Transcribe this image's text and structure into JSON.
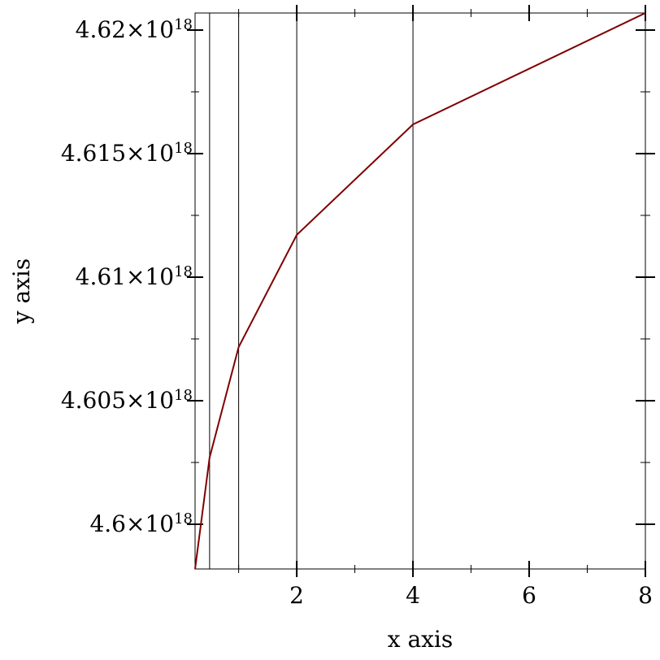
{
  "chart_data": {
    "type": "line",
    "title": "",
    "xlabel": "x axis",
    "ylabel": "y axis",
    "xlim": [
      0.25,
      8
    ],
    "ylim": [
      4.59819e+18,
      4.62069e+18
    ],
    "x_ticks": [
      {
        "value": 2,
        "label": "2"
      },
      {
        "value": 4,
        "label": "4"
      },
      {
        "value": 6,
        "label": "6"
      },
      {
        "value": 8,
        "label": "8"
      }
    ],
    "x_minor_ticks": [
      1,
      3,
      5,
      7
    ],
    "y_ticks": [
      {
        "value": 4.6e+18,
        "mant": "4.6×10",
        "exp": "18"
      },
      {
        "value": 4.605e+18,
        "mant": "4.605×10",
        "exp": "18"
      },
      {
        "value": 4.61e+18,
        "mant": "4.61×10",
        "exp": "18"
      },
      {
        "value": 4.615e+18,
        "mant": "4.615×10",
        "exp": "18"
      },
      {
        "value": 4.62e+18,
        "mant": "4.62×10",
        "exp": "18"
      }
    ],
    "y_minor_ticks": [
      4.6025e+18,
      4.6075e+18,
      4.6125e+18,
      4.6175e+18
    ],
    "vertical_lines": [
      0.25,
      0.5,
      1,
      2,
      4,
      8
    ],
    "series": [
      {
        "color": "#800000",
        "x": [
          0.25,
          0.5,
          1,
          2,
          4,
          8
        ],
        "y": [
          4.59819e+18,
          4.6027e+18,
          4.60717e+18,
          4.61171e+18,
          4.61618e+18,
          4.62069e+18
        ]
      }
    ],
    "grid": false
  }
}
